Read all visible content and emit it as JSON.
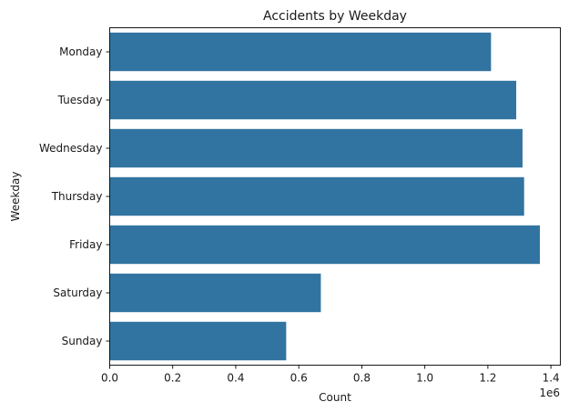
{
  "chart_data": {
    "type": "bar",
    "orientation": "horizontal",
    "title": "Accidents by Weekday",
    "xlabel": "Count",
    "ylabel": "Weekday",
    "x_offset_label": "1e6",
    "categories": [
      "Monday",
      "Tuesday",
      "Wednesday",
      "Thursday",
      "Friday",
      "Saturday",
      "Sunday"
    ],
    "values": [
      1210000,
      1290000,
      1310000,
      1315000,
      1365000,
      670000,
      560000
    ],
    "xlim": [
      0,
      1430000
    ],
    "xticks": [
      0,
      200000,
      400000,
      600000,
      800000,
      1000000,
      1200000,
      1400000
    ],
    "xtick_labels": [
      "0.0",
      "0.2",
      "0.4",
      "0.6",
      "0.8",
      "1.0",
      "1.2",
      "1.4"
    ],
    "grid": false,
    "bar_color": "#3274a1"
  }
}
